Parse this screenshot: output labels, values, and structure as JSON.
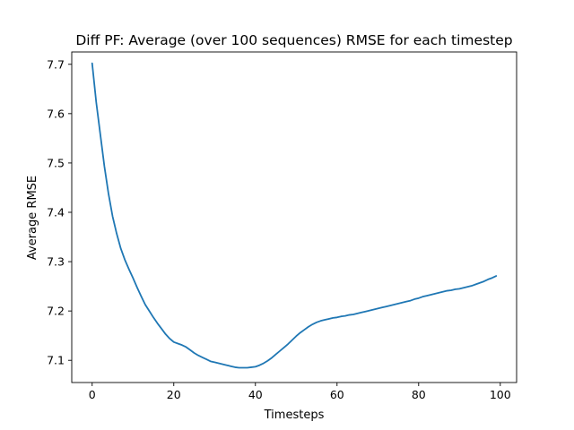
{
  "chart_data": {
    "type": "line",
    "title": "Diff PF: Average (over 100 sequences) RMSE for each timestep",
    "xlabel": "Timesteps",
    "ylabel": "Average RMSE",
    "xlim": [
      -5,
      104
    ],
    "ylim": [
      7.055,
      7.725
    ],
    "x_ticks": [
      0,
      20,
      40,
      60,
      80,
      100
    ],
    "y_ticks": [
      7.1,
      7.2,
      7.3,
      7.4,
      7.5,
      7.6,
      7.7
    ],
    "grid": false,
    "legend": "none",
    "series": [
      {
        "color": "#1f77b4",
        "x": [
          0,
          1,
          2,
          3,
          4,
          5,
          6,
          7,
          8,
          9,
          10,
          11,
          12,
          13,
          14,
          15,
          16,
          17,
          18,
          19,
          20,
          21,
          22,
          23,
          24,
          25,
          26,
          27,
          28,
          29,
          30,
          31,
          32,
          33,
          34,
          35,
          36,
          37,
          38,
          39,
          40,
          41,
          42,
          43,
          44,
          45,
          46,
          47,
          48,
          49,
          50,
          51,
          52,
          53,
          54,
          55,
          56,
          57,
          58,
          59,
          60,
          61,
          62,
          63,
          64,
          65,
          66,
          67,
          68,
          69,
          70,
          71,
          72,
          73,
          74,
          75,
          76,
          77,
          78,
          79,
          80,
          81,
          82,
          83,
          84,
          85,
          86,
          87,
          88,
          89,
          90,
          91,
          92,
          93,
          94,
          95,
          96,
          97,
          98,
          99
        ],
        "y": [
          7.702,
          7.623,
          7.558,
          7.493,
          7.438,
          7.392,
          7.357,
          7.327,
          7.304,
          7.285,
          7.267,
          7.248,
          7.23,
          7.213,
          7.2,
          7.187,
          7.175,
          7.164,
          7.153,
          7.144,
          7.137,
          7.134,
          7.131,
          7.127,
          7.121,
          7.115,
          7.11,
          7.106,
          7.102,
          7.098,
          7.096,
          7.094,
          7.092,
          7.09,
          7.088,
          7.086,
          7.085,
          7.085,
          7.085,
          7.086,
          7.087,
          7.09,
          7.094,
          7.099,
          7.105,
          7.112,
          7.119,
          7.126,
          7.133,
          7.141,
          7.149,
          7.156,
          7.162,
          7.168,
          7.173,
          7.177,
          7.18,
          7.182,
          7.184,
          7.186,
          7.187,
          7.189,
          7.19,
          7.192,
          7.193,
          7.195,
          7.197,
          7.199,
          7.201,
          7.203,
          7.205,
          7.207,
          7.209,
          7.211,
          7.213,
          7.215,
          7.217,
          7.219,
          7.221,
          7.224,
          7.226,
          7.229,
          7.231,
          7.233,
          7.235,
          7.237,
          7.239,
          7.241,
          7.242,
          7.244,
          7.245,
          7.247,
          7.249,
          7.251,
          7.254,
          7.257,
          7.26,
          7.264,
          7.267,
          7.271
        ]
      }
    ]
  }
}
